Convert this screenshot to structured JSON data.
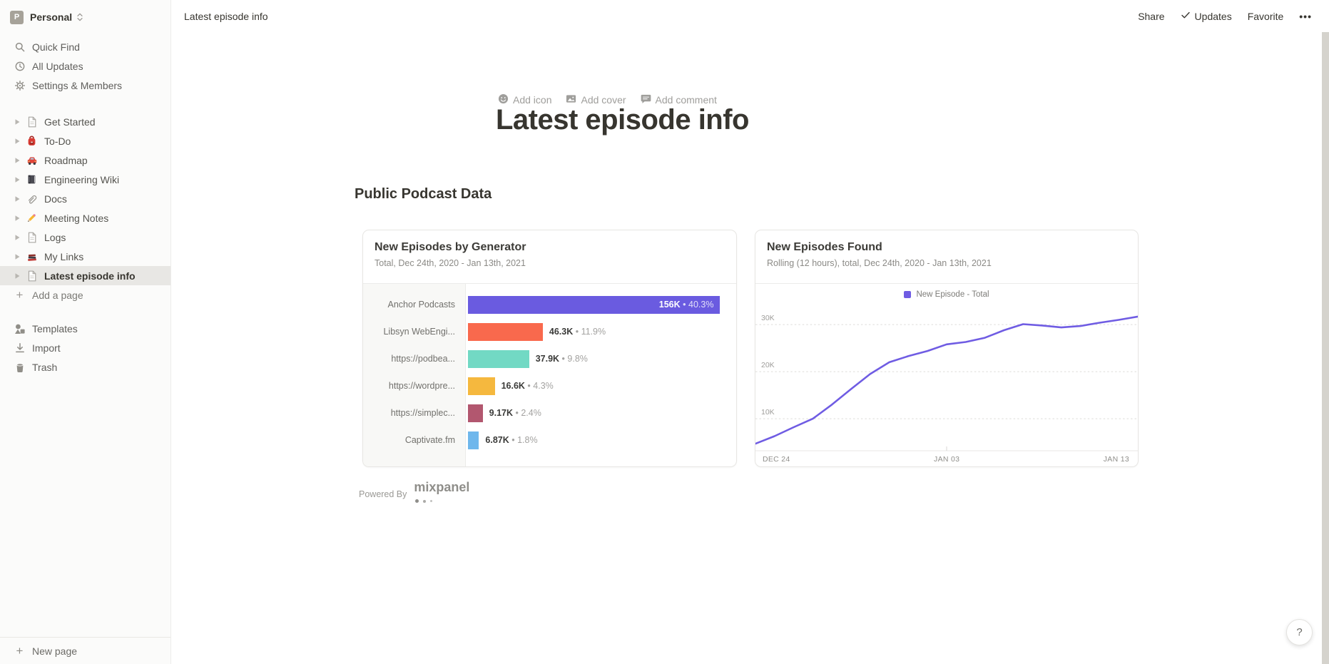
{
  "workspace": {
    "initial": "P",
    "name": "Personal"
  },
  "sidebar": {
    "nav": [
      {
        "icon": "search-icon",
        "label": "Quick Find"
      },
      {
        "icon": "clock-icon",
        "label": "All Updates"
      },
      {
        "icon": "gear-icon",
        "label": "Settings & Members"
      }
    ],
    "pages": [
      {
        "icon": "page-icon",
        "label": "Get Started"
      },
      {
        "icon": "backpack-icon",
        "label": "To-Do"
      },
      {
        "icon": "car-icon",
        "label": "Roadmap"
      },
      {
        "icon": "notebook-icon",
        "label": "Engineering Wiki"
      },
      {
        "icon": "paperclip-icon",
        "label": "Docs"
      },
      {
        "icon": "pencil-icon",
        "label": "Meeting Notes"
      },
      {
        "icon": "page-icon",
        "label": "Logs"
      },
      {
        "icon": "books-icon",
        "label": "My Links"
      },
      {
        "icon": "page-icon",
        "label": "Latest episode info",
        "selected": true
      }
    ],
    "add_page": "Add a page",
    "tools": [
      {
        "icon": "templates-icon",
        "label": "Templates"
      },
      {
        "icon": "import-icon",
        "label": "Import"
      },
      {
        "icon": "trash-icon",
        "label": "Trash"
      }
    ],
    "new_page": "New page"
  },
  "topbar": {
    "breadcrumb": "Latest episode info",
    "share": "Share",
    "updates": "Updates",
    "favorite": "Favorite",
    "more": "•••"
  },
  "page": {
    "add_icon": "Add icon",
    "add_cover": "Add cover",
    "add_comment": "Add comment",
    "title": "Latest episode info",
    "heading": "Public Podcast Data",
    "powered_by": "Powered By",
    "logo_text": "mixpanel"
  },
  "help_label": "?",
  "chart_data": [
    {
      "type": "bar",
      "orientation": "horizontal",
      "title": "New Episodes by Generator",
      "subtitle": "Total, Dec 24th, 2020 - Jan 13th, 2021",
      "categories": [
        "Anchor Podcasts",
        "Libsyn WebEngi...",
        "https://podbea...",
        "https://wordpre...",
        "https://simplec...",
        "Captivate.fm"
      ],
      "values": [
        156000,
        46300,
        37900,
        16600,
        9170,
        6870
      ],
      "value_labels": [
        "156K",
        "46.3K",
        "37.9K",
        "16.6K",
        "9.17K",
        "6.87K"
      ],
      "percents": [
        "40.3%",
        "11.9%",
        "9.8%",
        "4.3%",
        "2.4%",
        "1.8%"
      ],
      "colors": [
        "#6a5be0",
        "#f9694d",
        "#72d9c4",
        "#f5b83e",
        "#b2576f",
        "#6fb7ec"
      ],
      "xlim": [
        0,
        166000
      ],
      "value_label_inside_first_bar": true
    },
    {
      "type": "line",
      "title": "New Episodes Found",
      "subtitle": "Rolling (12 hours), total, Dec 24th, 2020 - Jan 13th, 2021",
      "legend": [
        "New Episode - Total"
      ],
      "legend_position": "top",
      "color": "#6f5ce3",
      "x": [
        "Dec 24",
        "Dec 25",
        "Dec 26",
        "Dec 27",
        "Dec 28",
        "Dec 29",
        "Dec 30",
        "Dec 31",
        "Jan 1",
        "Jan 2",
        "Jan 3",
        "Jan 4",
        "Jan 5",
        "Jan 6",
        "Jan 7",
        "Jan 8",
        "Jan 9",
        "Jan 10",
        "Jan 11",
        "Jan 12",
        "Jan 13"
      ],
      "values": [
        4700,
        6300,
        8200,
        10000,
        13000,
        16300,
        19500,
        22000,
        23300,
        24400,
        25800,
        26300,
        27200,
        28800,
        30100,
        29800,
        29400,
        29700,
        30400,
        31000,
        31700
      ],
      "x_tick_labels": [
        "DEC 24",
        "JAN 03",
        "JAN 13"
      ],
      "y_tick_labels": [
        "10K",
        "20K",
        "30K"
      ],
      "ylim": [
        3200,
        35000
      ],
      "grid": "dashed-horizontal"
    }
  ]
}
